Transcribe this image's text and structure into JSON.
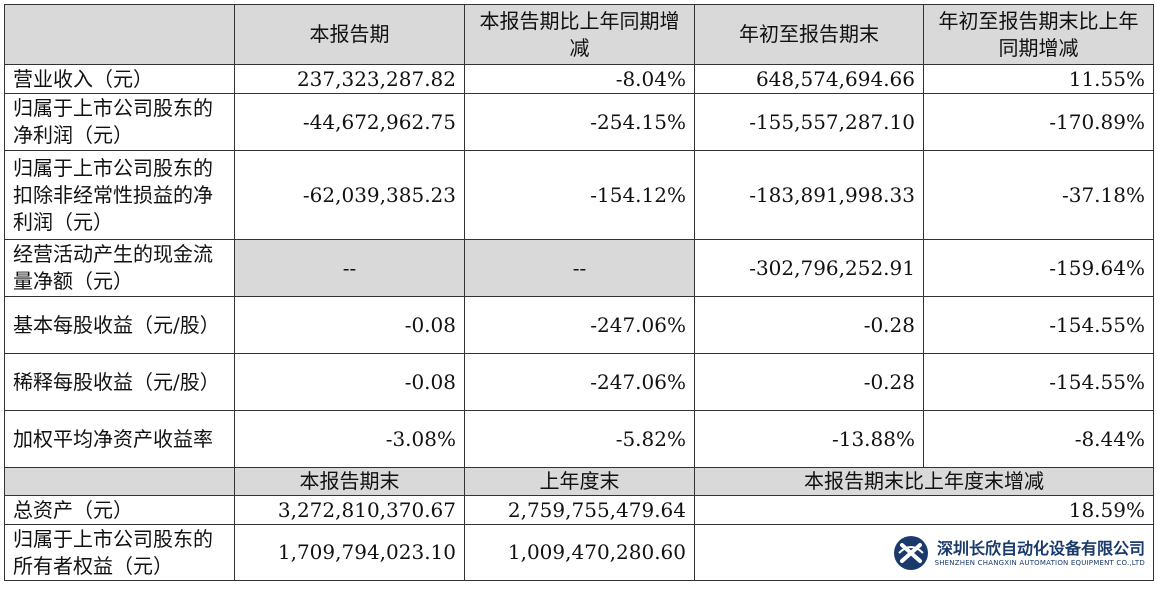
{
  "header": {
    "col1": "本报告期",
    "col2": "本报告期比上年同期增减",
    "col3": "年初至报告期末",
    "col4": "年初至报告期末比上年同期增减"
  },
  "rows": [
    {
      "label": "营业收入（元）",
      "v1": "237,323,287.82",
      "v2": "-8.04%",
      "v3": "648,574,694.66",
      "v4": "11.55%"
    },
    {
      "label": "归属于上市公司股东的净利润（元）",
      "v1": "-44,672,962.75",
      "v2": "-254.15%",
      "v3": "-155,557,287.10",
      "v4": "-170.89%"
    },
    {
      "label": "归属于上市公司股东的扣除非经常性损益的净利润（元）",
      "v1": "-62,039,385.23",
      "v2": "-154.12%",
      "v3": "-183,891,998.33",
      "v4": "-37.18%"
    },
    {
      "label": "经营活动产生的现金流量净额（元）",
      "v1": "--",
      "v2": "--",
      "v3": "-302,796,252.91",
      "v4": "-159.64%"
    },
    {
      "label": "基本每股收益（元/股）",
      "v1": "-0.08",
      "v2": "-247.06%",
      "v3": "-0.28",
      "v4": "-154.55%"
    },
    {
      "label": "稀释每股收益（元/股）",
      "v1": "-0.08",
      "v2": "-247.06%",
      "v3": "-0.28",
      "v4": "-154.55%"
    },
    {
      "label": "加权平均净资产收益率",
      "v1": "-3.08%",
      "v2": "-5.82%",
      "v3": "-13.88%",
      "v4": "-8.44%"
    }
  ],
  "header2": {
    "col1": "本报告期末",
    "col2": "上年度末",
    "col3": "本报告期末比上年度末增减"
  },
  "rows2": [
    {
      "label": "总资产（元）",
      "v1": "3,272,810,370.67",
      "v2": "2,759,755,479.64",
      "v3": "18.59%"
    },
    {
      "label": "归属于上市公司股东的所有者权益（元）",
      "v1": "1,709,794,023.10",
      "v2": "1,009,470,280.60",
      "v3": ""
    }
  ],
  "watermark": {
    "cn": "深圳长欣自动化设备有限公司",
    "en": "SHENZHEN CHANGXIN AUTOMATION EQUIPMENT CO.,LTD",
    "logo_icon": "cx-logo-icon",
    "color": "#1a3a6b"
  }
}
